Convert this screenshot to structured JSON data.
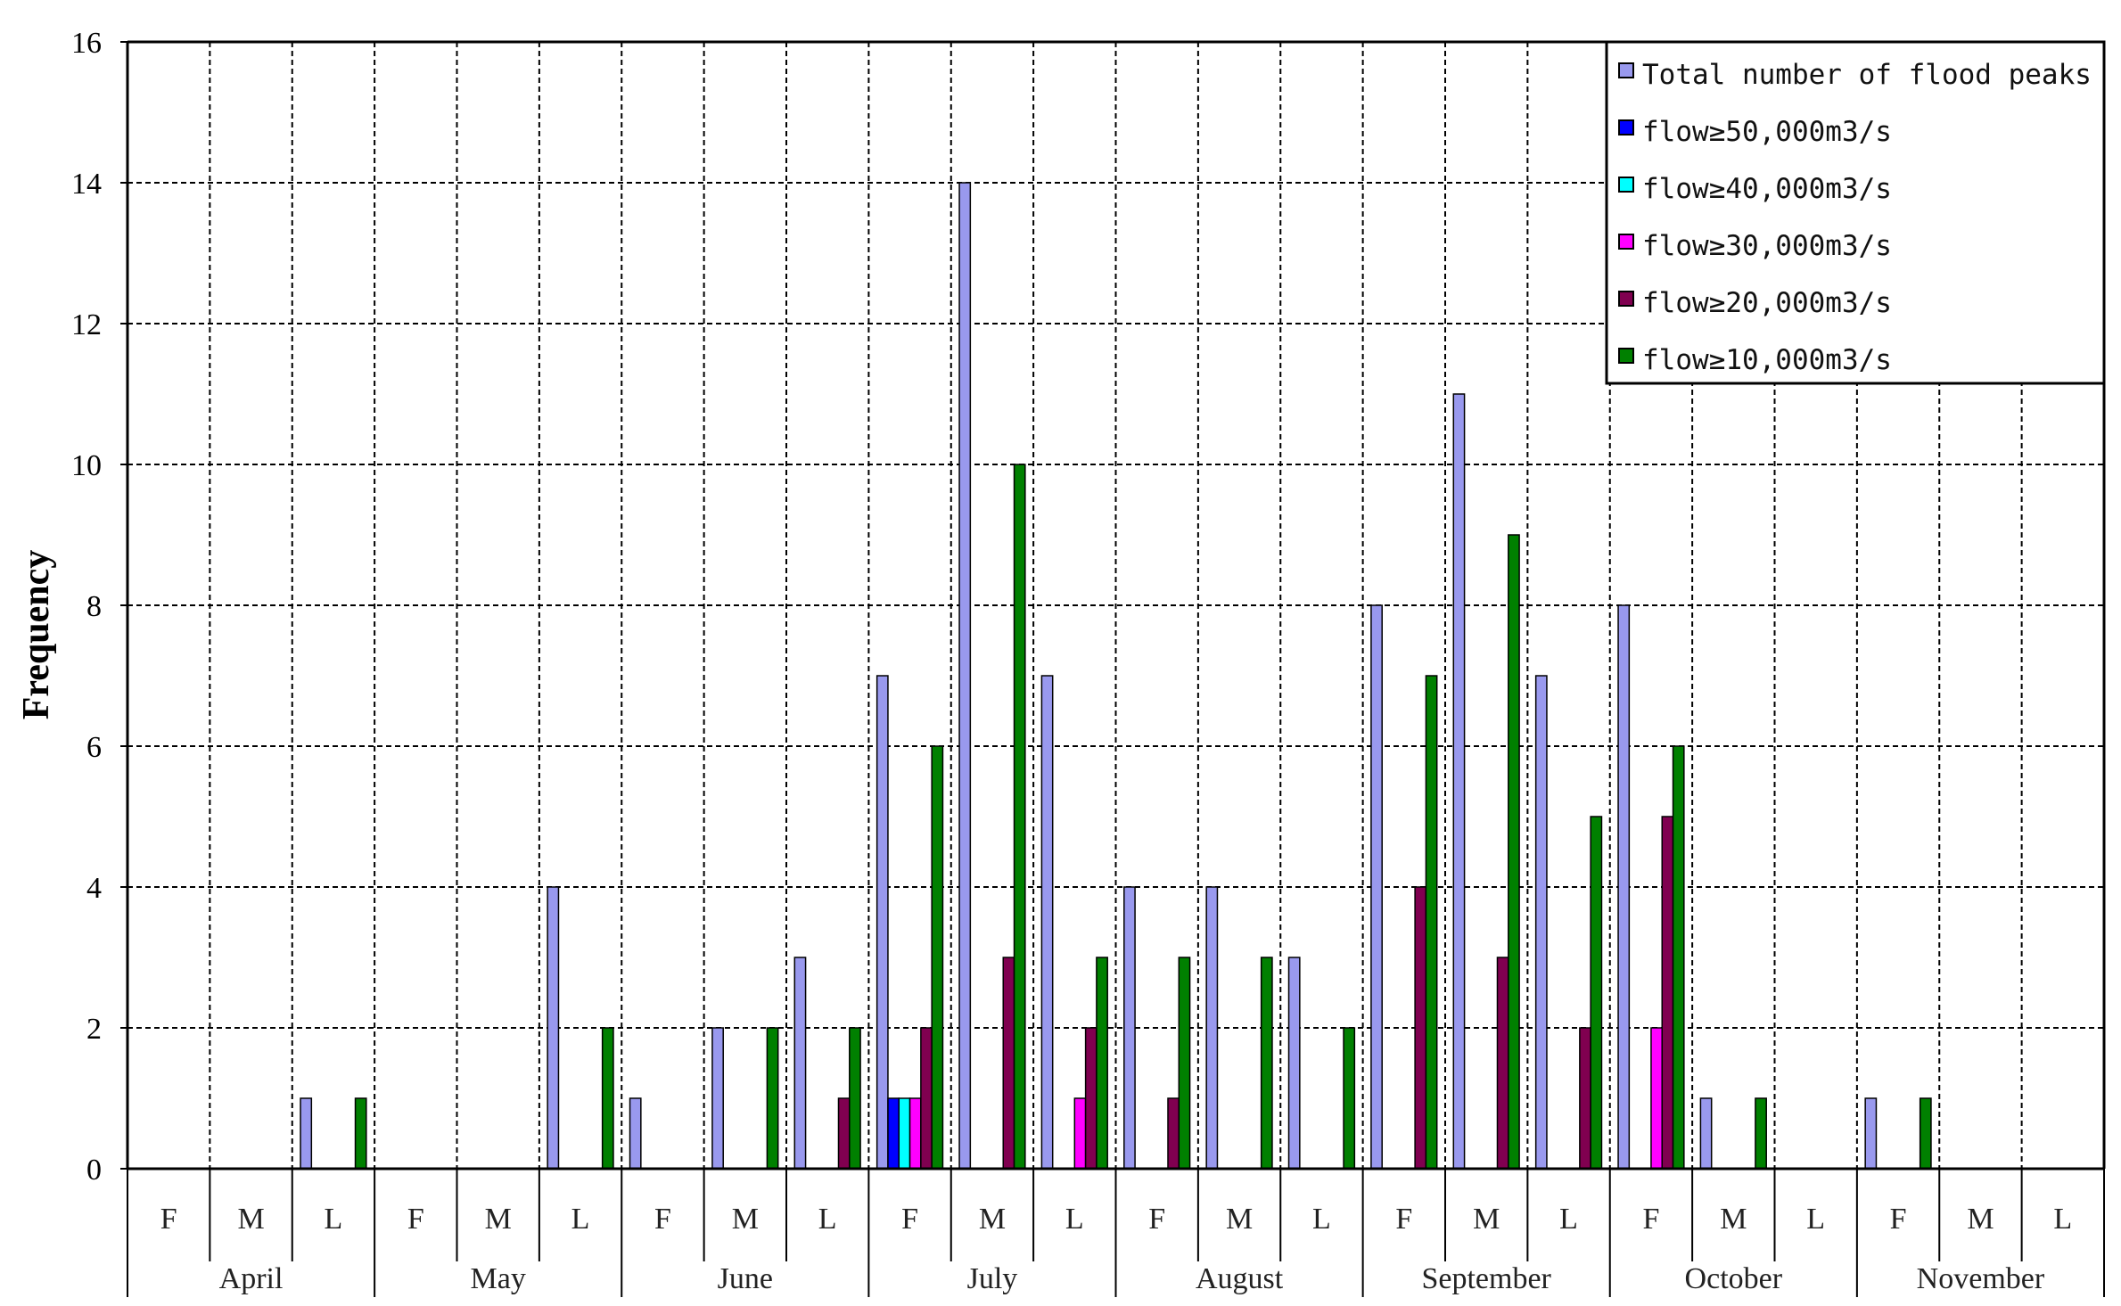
{
  "chart_data": {
    "type": "bar",
    "ylabel": "Frequency",
    "xlabel": "",
    "ylim": [
      0,
      16
    ],
    "yticks": [
      "0",
      "2",
      "4",
      "6",
      "8",
      "10",
      "12",
      "14",
      "16"
    ],
    "grid": true,
    "legend_position": "top-right",
    "months": [
      "April",
      "May",
      "June",
      "July",
      "August",
      "September",
      "October",
      "November"
    ],
    "periods": [
      "F",
      "M",
      "L"
    ],
    "series": [
      {
        "name": "Total number of flood peaks",
        "color": "#9999ee",
        "values": [
          0,
          0,
          1,
          0,
          0,
          4,
          1,
          2,
          3,
          7,
          14,
          7,
          4,
          4,
          3,
          8,
          11,
          7,
          8,
          1,
          0,
          1,
          0,
          0
        ]
      },
      {
        "name": "flow≥50,000m3/s",
        "color": "#0000ff",
        "values": [
          0,
          0,
          0,
          0,
          0,
          0,
          0,
          0,
          0,
          1,
          0,
          0,
          0,
          0,
          0,
          0,
          0,
          0,
          0,
          0,
          0,
          0,
          0,
          0
        ]
      },
      {
        "name": "flow≥40,000m3/s",
        "color": "#00ffff",
        "values": [
          0,
          0,
          0,
          0,
          0,
          0,
          0,
          0,
          0,
          1,
          0,
          0,
          0,
          0,
          0,
          0,
          0,
          0,
          0,
          0,
          0,
          0,
          0,
          0
        ]
      },
      {
        "name": "flow≥30,000m3/s",
        "color": "#ff00ff",
        "values": [
          0,
          0,
          0,
          0,
          0,
          0,
          0,
          0,
          0,
          1,
          0,
          1,
          0,
          0,
          0,
          0,
          0,
          0,
          2,
          0,
          0,
          0,
          0,
          0
        ]
      },
      {
        "name": "flow≥20,000m3/s",
        "color": "#800050",
        "values": [
          0,
          0,
          0,
          0,
          0,
          0,
          0,
          0,
          1,
          2,
          3,
          2,
          1,
          0,
          0,
          4,
          3,
          2,
          5,
          0,
          0,
          0,
          0,
          0
        ]
      },
      {
        "name": "flow≥10,000m3/s",
        "color": "#008000",
        "values": [
          0,
          0,
          1,
          0,
          0,
          2,
          0,
          2,
          2,
          6,
          10,
          3,
          3,
          3,
          2,
          7,
          9,
          5,
          6,
          1,
          0,
          1,
          0,
          0
        ]
      }
    ]
  }
}
